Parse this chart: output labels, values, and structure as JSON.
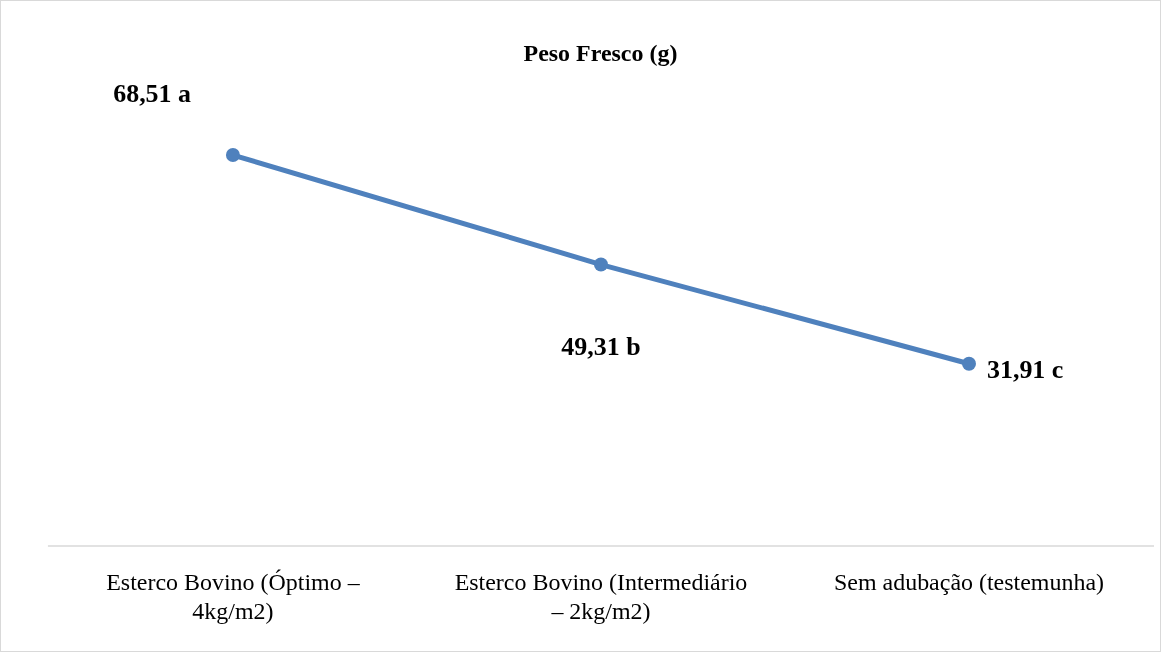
{
  "chart_data": {
    "type": "line",
    "title": "Peso Fresco (g)",
    "categories": [
      "Esterco Bovino (Óptimo – 4kg/m2)",
      "Esterco Bovino (Intermediário – 2kg/m2)",
      "Sem adubação (testemunha)"
    ],
    "series": [
      {
        "color": "#4f81bd",
        "values": [
          68.51,
          49.31,
          31.91
        ],
        "value_labels": [
          "68,51 a",
          "49,31 b",
          "31,91 c"
        ]
      }
    ],
    "marker": "circle",
    "legend": false,
    "grid": false
  }
}
